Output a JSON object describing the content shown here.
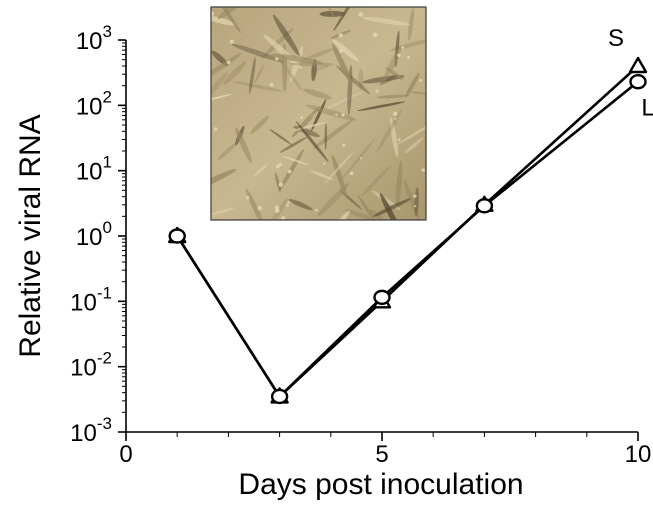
{
  "chart_data": {
    "type": "line",
    "title": "",
    "xlabel": "Days post inoculation",
    "ylabel": "Relative viral RNA",
    "x_scale": "linear",
    "y_scale": "log",
    "xlim": [
      0,
      10
    ],
    "ylim": [
      0.001,
      1000
    ],
    "x_ticks": [
      0,
      5,
      10
    ],
    "x_tick_labels": [
      "0",
      "5",
      "10"
    ],
    "y_tick_labels": [
      {
        "base": "10",
        "exp": "-3",
        "value": 0.001
      },
      {
        "base": "10",
        "exp": "-2",
        "value": 0.01
      },
      {
        "base": "10",
        "exp": "-1",
        "value": 0.1
      },
      {
        "base": "10",
        "exp": "0",
        "value": 1
      },
      {
        "base": "10",
        "exp": "1",
        "value": 10
      },
      {
        "base": "10",
        "exp": "2",
        "value": 100
      },
      {
        "base": "10",
        "exp": "3",
        "value": 1000
      }
    ],
    "grid": false,
    "series": [
      {
        "name": "S",
        "marker": "triangle",
        "x": [
          1,
          3,
          5,
          7,
          10
        ],
        "y": [
          1.0,
          0.0035,
          0.1,
          3.0,
          400
        ]
      },
      {
        "name": "L",
        "marker": "circle",
        "x": [
          1,
          3,
          5,
          7,
          10
        ],
        "y": [
          1.0,
          0.0035,
          0.115,
          2.9,
          230
        ]
      }
    ],
    "inset": {
      "kind": "micrograph",
      "subject": "elongated cells in culture (phase contrast)",
      "colors": [
        "#c2ae86",
        "#9a8a62",
        "#e2d6b4",
        "#5a4e36"
      ]
    }
  }
}
